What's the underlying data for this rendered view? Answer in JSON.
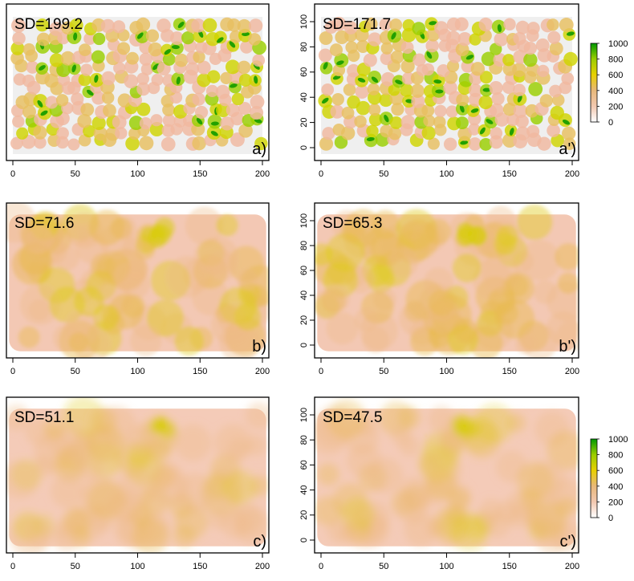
{
  "chart_data": [
    {
      "type": "heatmap",
      "panel_label": "a)",
      "annotation": "SD=199.2",
      "x_ticks": [
        0,
        50,
        100,
        150,
        200
      ],
      "y_ticks": [],
      "xlim": [
        0,
        200
      ],
      "ylim": [
        -5,
        105
      ],
      "pattern": "discrete"
    },
    {
      "type": "heatmap",
      "panel_label": "a')",
      "annotation": "SD=171.7",
      "x_ticks": [
        0,
        50,
        100,
        150,
        200
      ],
      "y_ticks": [
        0,
        20,
        40,
        60,
        80,
        100
      ],
      "xlim": [
        0,
        200
      ],
      "ylim": [
        -5,
        105
      ],
      "pattern": "discrete"
    },
    {
      "type": "heatmap",
      "panel_label": "b)",
      "annotation": "SD=71.6",
      "x_ticks": [
        0,
        50,
        100,
        150,
        200
      ],
      "y_ticks": [],
      "xlim": [
        0,
        200
      ],
      "ylim": [
        -5,
        105
      ],
      "pattern": "smooth"
    },
    {
      "type": "heatmap",
      "panel_label": "b')",
      "annotation": "SD=65.3",
      "x_ticks": [
        0,
        50,
        100,
        150,
        200
      ],
      "y_ticks": [
        0,
        20,
        40,
        60,
        80,
        100
      ],
      "xlim": [
        0,
        200
      ],
      "ylim": [
        -5,
        105
      ],
      "pattern": "smooth"
    },
    {
      "type": "heatmap",
      "panel_label": "c)",
      "annotation": "SD=51.1",
      "x_ticks": [
        0,
        50,
        100,
        150,
        200
      ],
      "y_ticks": [],
      "xlim": [
        0,
        200
      ],
      "ylim": [
        -5,
        105
      ],
      "pattern": "smoother"
    },
    {
      "type": "heatmap",
      "panel_label": "c')",
      "annotation": "SD=47.5",
      "x_ticks": [
        0,
        50,
        100,
        150,
        200
      ],
      "y_ticks": [
        0,
        20,
        40,
        60,
        80,
        100
      ],
      "xlim": [
        0,
        200
      ],
      "ylim": [
        -5,
        105
      ],
      "pattern": "smoother"
    }
  ],
  "legends": [
    {
      "ticks": [
        0,
        200,
        400,
        600,
        800,
        1000
      ],
      "range": [
        0,
        1000
      ],
      "colors": [
        "#ffffff",
        "#f2c8b0",
        "#e8b87a",
        "#e8d000",
        "#9acd00",
        "#009900"
      ]
    },
    {
      "ticks": [
        0,
        200,
        400,
        600,
        800,
        1000
      ],
      "range": [
        0,
        1000
      ],
      "colors": [
        "#ffffff",
        "#f2c8b0",
        "#e8b87a",
        "#e8d000",
        "#9acd00",
        "#009900"
      ]
    }
  ]
}
